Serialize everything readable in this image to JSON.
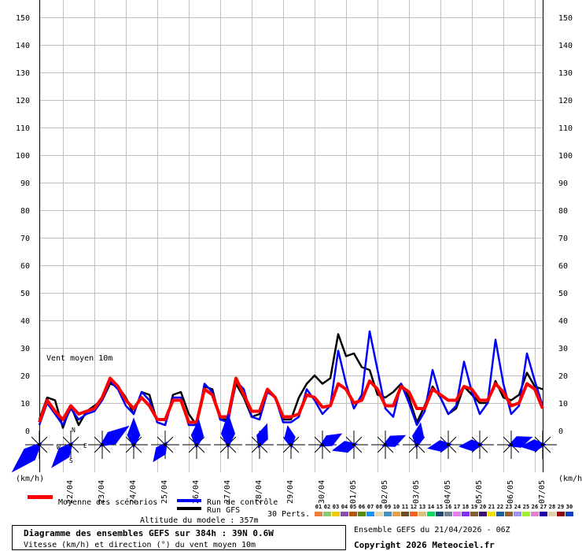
{
  "chart_data": {
    "type": "line",
    "title": "Diagramme des ensembles GEFS sur 384h : 39N 0.6W",
    "subtitle": "Vitesse (km/h) et direction (°) du vent moyen 10m",
    "annotation": "Vent moyen 10m",
    "ylabel_left": "(km/h)",
    "ylabel_right": "(km/h)",
    "ylim": [
      0,
      150
    ],
    "yticks": [
      0,
      10,
      20,
      30,
      40,
      50,
      60,
      70,
      80,
      90,
      100,
      110,
      120,
      130,
      140,
      150
    ],
    "grid": true,
    "x_step_hours": 6,
    "x_start": "21/04/2026 06Z",
    "date_labels": [
      "22/04",
      "23/04",
      "24/04",
      "25/04",
      "26/04",
      "27/04",
      "28/04",
      "29/04",
      "30/04",
      "01/05",
      "02/05",
      "03/05",
      "04/05",
      "05/05",
      "06/05",
      "07/05"
    ],
    "series": [
      {
        "name": "Moyenne des scénarios",
        "color": "#ff0000",
        "values": [
          3,
          11,
          7,
          4,
          9,
          6,
          7,
          8,
          12,
          19,
          16,
          11,
          8,
          12,
          9,
          4,
          4,
          11,
          11,
          3,
          3,
          15,
          13,
          5,
          5,
          19,
          13,
          7,
          7,
          15,
          12,
          5,
          5,
          6,
          13,
          12,
          8.5,
          9,
          17,
          15,
          10,
          11,
          18,
          15,
          9,
          9,
          16,
          14,
          8,
          8,
          15,
          13,
          11,
          11,
          16,
          15,
          11,
          11,
          17,
          14,
          9,
          10,
          17,
          15,
          8
        ]
      },
      {
        "name": "Run de contrôle",
        "color": "#0000ff",
        "values": [
          2,
          10,
          6,
          2,
          8,
          4,
          6,
          7,
          11,
          18,
          15,
          9,
          6,
          14,
          11,
          3,
          2,
          12,
          12,
          2,
          2,
          17,
          14,
          4,
          3,
          18,
          15,
          5,
          4,
          14,
          12,
          3,
          3,
          5,
          15,
          11,
          6,
          9,
          29,
          17,
          8,
          13,
          36,
          22,
          8,
          5,
          17,
          10,
          2,
          7,
          22,
          12,
          6,
          9,
          25,
          14,
          6,
          10,
          33,
          17,
          6,
          9,
          28,
          18,
          9
        ]
      },
      {
        "name": "Run GFS",
        "color": "#000000",
        "values": [
          4,
          12,
          11,
          1,
          9,
          2,
          7,
          9,
          11,
          17,
          16,
          12,
          6,
          14,
          13,
          3,
          2,
          13,
          14,
          6,
          2,
          16,
          15,
          4,
          4,
          17,
          12,
          5,
          6,
          15,
          12,
          4,
          4,
          12,
          17,
          20,
          17,
          19,
          35,
          27,
          28,
          23,
          22,
          13,
          12,
          14,
          17,
          12,
          3,
          9,
          16,
          12,
          6,
          8,
          16,
          13,
          10,
          10,
          18,
          12,
          11,
          13,
          21,
          16,
          15
        ]
      }
    ],
    "wind_direction_glyphs": [
      {
        "date_index": 0,
        "direction_deg": 225,
        "strength": 1.0
      },
      {
        "date_index": 1,
        "direction_deg": 220,
        "strength": 0.7
      },
      {
        "date_index": 2,
        "direction_deg": 55,
        "strength": 0.8
      },
      {
        "date_index": 3,
        "direction_deg": 0,
        "strength": 0.6
      },
      {
        "date_index": 4,
        "direction_deg": 215,
        "strength": 0.4
      },
      {
        "date_index": 5,
        "direction_deg": 5,
        "strength": 0.55
      },
      {
        "date_index": 6,
        "direction_deg": 0,
        "strength": 0.75
      },
      {
        "date_index": 7,
        "direction_deg": 20,
        "strength": 0.45
      },
      {
        "date_index": 8,
        "direction_deg": 350,
        "strength": 0.35
      },
      {
        "date_index": 9,
        "direction_deg": 60,
        "strength": 0.45
      },
      {
        "date_index": 10,
        "direction_deg": 255,
        "strength": 0.45
      },
      {
        "date_index": 11,
        "direction_deg": 65,
        "strength": 0.45
      },
      {
        "date_index": 12,
        "direction_deg": 10,
        "strength": 0.45
      },
      {
        "date_index": 13,
        "direction_deg": 260,
        "strength": 0.4
      },
      {
        "date_index": 14,
        "direction_deg": 265,
        "strength": 0.4
      },
      {
        "date_index": 15,
        "direction_deg": 70,
        "strength": 0.45
      },
      {
        "date_index": 16,
        "direction_deg": 265,
        "strength": 0.45
      }
    ],
    "compass_labels": {
      "n": "N",
      "s": "S",
      "e": "E",
      "w": "W"
    }
  },
  "legend": {
    "mean_label": "Moyenne des scénarios",
    "control_label": "Run de contrôle",
    "gfs_label": "Run GFS",
    "perts_label": "30 Perts.",
    "perturbations": [
      {
        "id": "01",
        "color": "#e8803a"
      },
      {
        "id": "02",
        "color": "#8cc870"
      },
      {
        "id": "03",
        "color": "#f0c800"
      },
      {
        "id": "04",
        "color": "#8850a8"
      },
      {
        "id": "05",
        "color": "#b05a10"
      },
      {
        "id": "06",
        "color": "#5a8a10"
      },
      {
        "id": "07",
        "color": "#1a90f0"
      },
      {
        "id": "08",
        "color": "#e8d8b0"
      },
      {
        "id": "09",
        "color": "#4890c0"
      },
      {
        "id": "10",
        "color": "#e0a050"
      },
      {
        "id": "11",
        "color": "#6a5020"
      },
      {
        "id": "12",
        "color": "#f06020"
      },
      {
        "id": "13",
        "color": "#d8c080"
      },
      {
        "id": "14",
        "color": "#10d860"
      },
      {
        "id": "15",
        "color": "#204870"
      },
      {
        "id": "16",
        "color": "#708090"
      },
      {
        "id": "17",
        "color": "#e080f0"
      },
      {
        "id": "18",
        "color": "#8030f0"
      },
      {
        "id": "19",
        "color": "#806030"
      },
      {
        "id": "20",
        "color": "#401070"
      },
      {
        "id": "21",
        "color": "#f0e000"
      },
      {
        "id": "22",
        "color": "#2060a0"
      },
      {
        "id": "23",
        "color": "#906030"
      },
      {
        "id": "24",
        "color": "#a090f0"
      },
      {
        "id": "25",
        "color": "#a0f030"
      },
      {
        "id": "26",
        "color": "#e080d0"
      },
      {
        "id": "27",
        "color": "#2000a0"
      },
      {
        "id": "28",
        "color": "#e0d0b0"
      },
      {
        "id": "29",
        "color": "#900010"
      },
      {
        "id": "30",
        "color": "#1040c0"
      }
    ]
  },
  "footer": {
    "altitude": "Altitude du modele : 357m",
    "run_info": "Ensemble GEFS du 21/04/2026 - 06Z",
    "copyright": "Copyright 2026 Meteociel.fr"
  }
}
